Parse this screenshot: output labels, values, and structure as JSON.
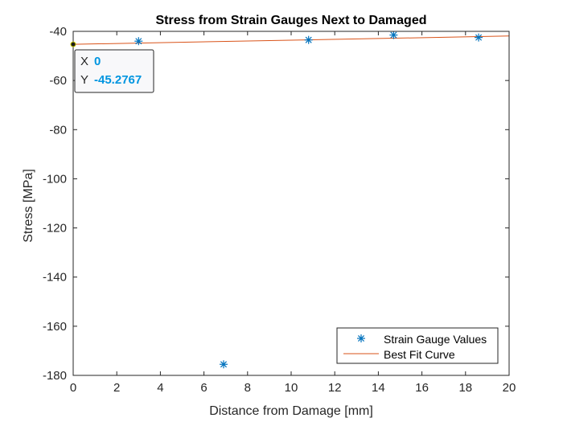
{
  "chart_data": {
    "type": "scatter",
    "title": "Stress from Strain Gauges Next to Damaged",
    "xlabel": "Distance from Damage [mm]",
    "ylabel": "Stress [MPa]",
    "xlim": [
      0,
      20
    ],
    "ylim": [
      -180,
      -40
    ],
    "xticks": [
      0,
      2,
      4,
      6,
      8,
      10,
      12,
      14,
      16,
      18,
      20
    ],
    "yticks": [
      -40,
      -60,
      -80,
      -100,
      -120,
      -140,
      -160,
      -180
    ],
    "grid": false,
    "legend_position": "bottom-right",
    "series": [
      {
        "name": "Strain Gauge Values",
        "kind": "scatter",
        "marker": "asterisk",
        "color": "#0072BD",
        "x": [
          3.0,
          6.9,
          10.8,
          14.7,
          18.6
        ],
        "y": [
          -44,
          -175.5,
          -43.5,
          -41.5,
          -42.5
        ]
      },
      {
        "name": "Best Fit Curve",
        "kind": "line",
        "color": "#D95319",
        "x": [
          0,
          20
        ],
        "y": [
          -45.2767,
          -41.9
        ]
      }
    ],
    "datatip": {
      "x_key": "X",
      "x_value": "0",
      "y_key": "Y",
      "y_value": "-45.2767",
      "x": 0,
      "y": -45.2767,
      "value_color": "#0095E0"
    }
  }
}
